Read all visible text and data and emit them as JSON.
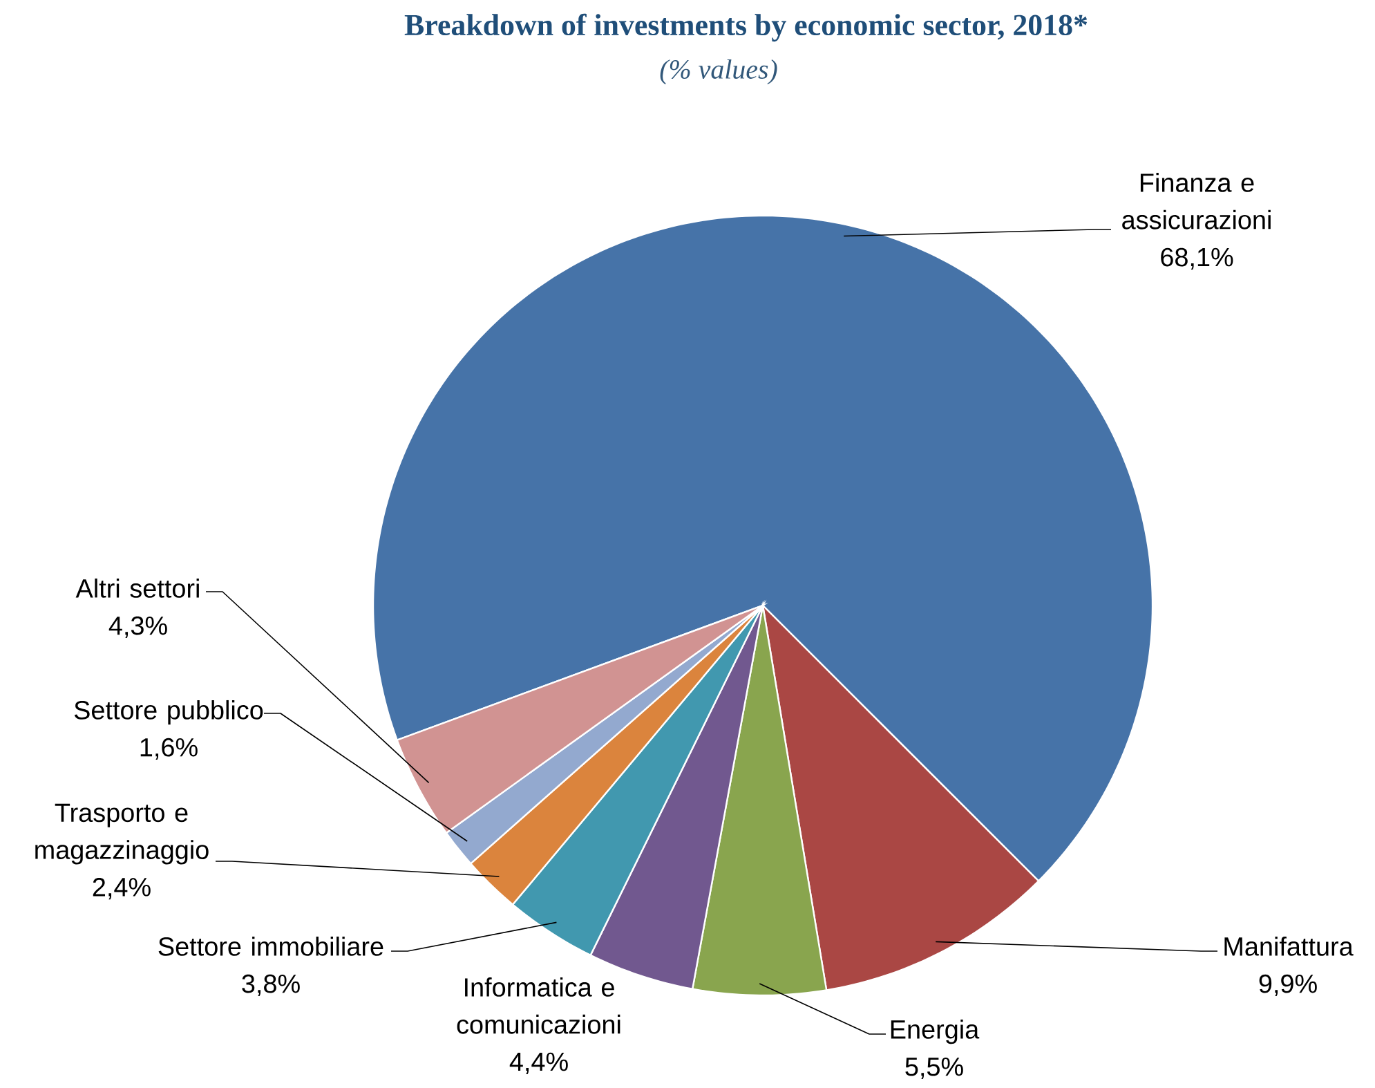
{
  "chart_data": {
    "type": "pie",
    "title": "Breakdown of investments by economic sector, 2018*",
    "subtitle": "(% values)",
    "categories": [
      "Finanza e assicurazioni",
      "Manifattura",
      "Energia",
      "Informatica e comunicazioni",
      "Settore immobiliare",
      "Trasporto e magazzinaggio",
      "Settore pubblico",
      "Altri settori"
    ],
    "values": [
      68.1,
      9.9,
      5.5,
      4.4,
      3.8,
      2.4,
      1.6,
      4.3
    ],
    "value_labels": [
      "68,1%",
      "9,9%",
      "5,5%",
      "4,4%",
      "3,8%",
      "2,4%",
      "1,6%",
      "4,3%"
    ],
    "colors": [
      "#4673a8",
      "#aa4744",
      "#89a54e",
      "#71588f",
      "#4198af",
      "#db843d",
      "#93a9cf",
      "#d19392"
    ],
    "legend": false
  }
}
